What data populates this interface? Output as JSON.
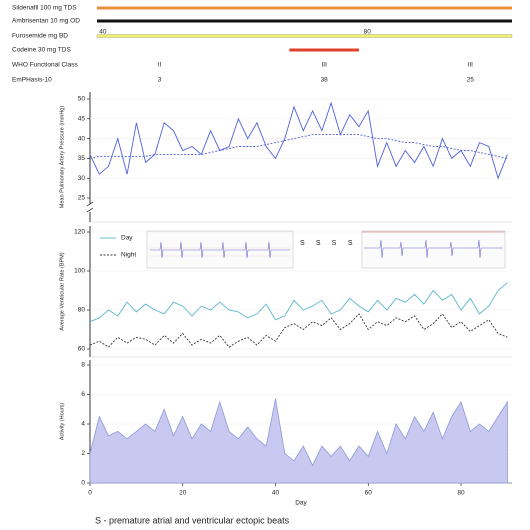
{
  "medications": [
    {
      "name": "Sildenafil 100 mg TDS",
      "color": "#e8913a",
      "start": 1.5,
      "end": 91
    },
    {
      "name": "Ambrisentan 10 mg OD",
      "color": "#111111",
      "start": 1.5,
      "end": 91
    },
    {
      "name": "Furosemide mg BD",
      "color": "#f2f06a",
      "start": 1.5,
      "end": 91,
      "doses": [
        {
          "day": 2,
          "value": 40
        },
        {
          "day": 59,
          "value": 80
        }
      ]
    },
    {
      "name": "Codeine 30 mg TDS",
      "color": "#e0402a",
      "start": 43,
      "end": 58
    }
  ],
  "scores": {
    "days": [
      15,
      50.5,
      82
    ],
    "rows": [
      {
        "name": "WHO Functional Class",
        "values": [
          "II",
          "III",
          "III"
        ]
      },
      {
        "name": "EmPHasis-10",
        "values": [
          3,
          38,
          25
        ]
      }
    ]
  },
  "chart_data": [
    {
      "type": "line",
      "y_label": "Mean Pulmonary Artery Pressure (mmHg)",
      "xlim": [
        0,
        91
      ],
      "ylim": [
        20,
        50
      ],
      "yticks": [
        25,
        30,
        35,
        40,
        45,
        50
      ],
      "grid": true,
      "axis_break": true,
      "x": [
        0,
        2,
        4,
        6,
        8,
        10,
        12,
        14,
        16,
        18,
        20,
        22,
        24,
        26,
        28,
        30,
        32,
        34,
        36,
        38,
        40,
        42,
        44,
        46,
        48,
        50,
        52,
        54,
        56,
        58,
        60,
        62,
        64,
        66,
        68,
        70,
        72,
        74,
        76,
        78,
        80,
        82,
        84,
        86,
        88,
        90
      ],
      "series": [
        {
          "color": "#5060dd",
          "style": "solid",
          "values": [
            36,
            31,
            33,
            40,
            31,
            44,
            34,
            36,
            44,
            42,
            37,
            38,
            36,
            42,
            37,
            38,
            45,
            40,
            44,
            38,
            35,
            40,
            48,
            42,
            47,
            42,
            49,
            41,
            46,
            43,
            47,
            33,
            39,
            33,
            37,
            34,
            38,
            33,
            40,
            35,
            37,
            33,
            39,
            38,
            30,
            36
          ]
        },
        {
          "color": "#5060dd",
          "style": "dashed",
          "values": [
            35,
            35.5,
            35.5,
            35.5,
            35.5,
            35.5,
            35.5,
            36,
            36,
            36,
            36,
            36,
            36,
            36.5,
            37,
            37.5,
            38,
            38,
            38,
            38.5,
            39,
            39.5,
            40,
            40.5,
            41,
            41,
            41,
            41,
            41,
            41,
            40.5,
            40,
            40,
            39.5,
            39,
            39,
            38.5,
            38,
            38,
            37.5,
            37,
            37,
            36.5,
            36,
            35.5,
            35
          ]
        }
      ]
    },
    {
      "type": "line",
      "y_label": "Average Ventricular Rate (BPM)",
      "xlim": [
        0,
        91
      ],
      "ylim": [
        60,
        120
      ],
      "yticks": [
        60,
        80,
        100,
        120
      ],
      "grid": true,
      "legend": "upper left",
      "annotations": [
        {
          "day": 45.8,
          "label": "S"
        },
        {
          "day": 49.2,
          "label": "S"
        },
        {
          "day": 52.6,
          "label": "S"
        },
        {
          "day": 56.1,
          "label": "S"
        }
      ],
      "x": [
        0,
        2,
        4,
        6,
        8,
        10,
        12,
        14,
        16,
        18,
        20,
        22,
        24,
        26,
        28,
        30,
        32,
        34,
        36,
        38,
        40,
        42,
        44,
        46,
        48,
        50,
        52,
        54,
        56,
        58,
        60,
        62,
        64,
        66,
        68,
        70,
        72,
        74,
        76,
        78,
        80,
        82,
        84,
        86,
        88,
        90
      ],
      "series": [
        {
          "name": "Day",
          "color": "#5bb8cc",
          "style": "solid",
          "values": [
            74,
            76,
            80,
            77,
            84,
            79,
            83,
            80,
            78,
            84,
            82,
            77,
            82,
            80,
            84,
            80,
            79,
            76,
            78,
            83,
            75,
            77,
            85,
            80,
            82,
            85,
            78,
            80,
            86,
            82,
            79,
            85,
            80,
            86,
            84,
            88,
            83,
            90,
            85,
            88,
            80,
            86,
            78,
            82,
            90,
            94
          ]
        },
        {
          "name": "Night",
          "color": "#333333",
          "style": "dashed",
          "values": [
            62,
            64,
            61,
            66,
            63,
            66,
            65,
            62,
            67,
            63,
            68,
            62,
            65,
            63,
            67,
            61,
            64,
            66,
            62,
            67,
            64,
            71,
            73,
            70,
            74,
            72,
            76,
            70,
            73,
            78,
            70,
            74,
            72,
            76,
            74,
            77,
            70,
            73,
            78,
            71,
            74,
            69,
            72,
            75,
            68,
            66
          ]
        }
      ]
    },
    {
      "type": "area",
      "y_label": "Activity (Hours)",
      "x_label": "Day",
      "xlim": [
        0,
        91
      ],
      "xticks": [
        0,
        20,
        40,
        60,
        80
      ],
      "ylim": [
        0,
        8
      ],
      "yticks": [
        0,
        2,
        4,
        6,
        8
      ],
      "grid": true,
      "x": [
        0,
        2,
        4,
        6,
        8,
        10,
        12,
        14,
        16,
        18,
        20,
        22,
        24,
        26,
        28,
        30,
        32,
        34,
        36,
        38,
        40,
        42,
        44,
        46,
        48,
        50,
        52,
        54,
        56,
        58,
        60,
        62,
        64,
        66,
        68,
        70,
        72,
        74,
        76,
        78,
        80,
        82,
        84,
        86,
        88,
        90
      ],
      "series": [
        {
          "color": "#8a9ad8",
          "fill": "#c8c8f0",
          "values": [
            2,
            4.5,
            3.2,
            3.5,
            3,
            3.5,
            4,
            3.5,
            5,
            3.2,
            4.5,
            3,
            4,
            3.5,
            5.5,
            3.5,
            3,
            3.8,
            3,
            2.5,
            5.7,
            2,
            1.5,
            2.5,
            1.2,
            2.5,
            1.8,
            2.5,
            1.5,
            2.5,
            1.8,
            3.5,
            2,
            4,
            3,
            4.5,
            3.5,
            4.8,
            3,
            4.5,
            5.5,
            3.5,
            4,
            3.5,
            4.5,
            5.5
          ]
        }
      ]
    }
  ],
  "footnote": "S - premature atrial and ventricular ectopic beats"
}
